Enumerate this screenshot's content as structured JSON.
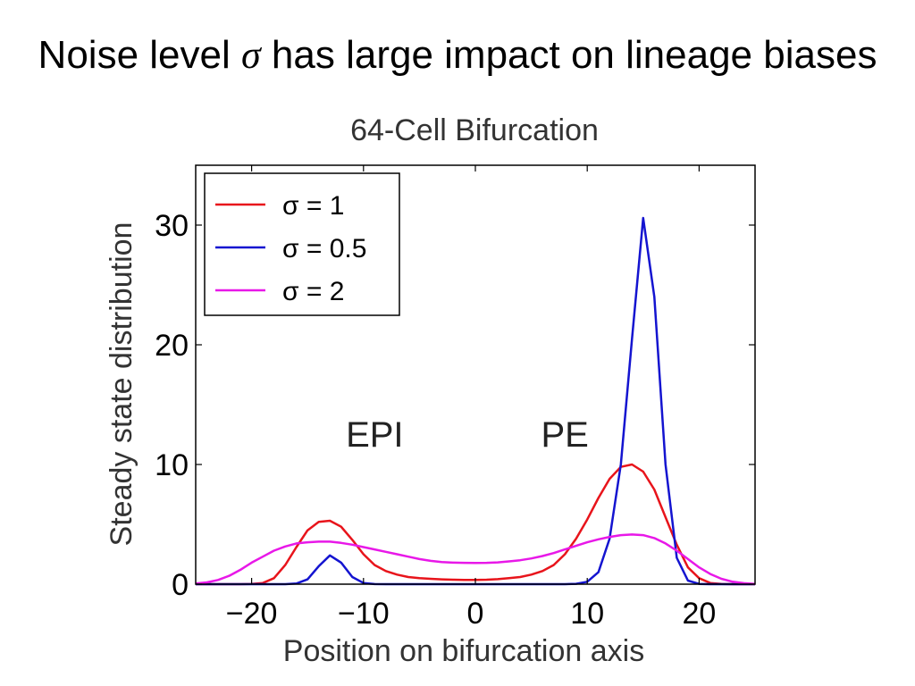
{
  "slide": {
    "title_before": "Noise level ",
    "title_symbol": "σ",
    "title_after": " has large impact on lineage biases"
  },
  "chart_data": {
    "type": "line",
    "title": "64-Cell Bifurcation",
    "xlabel": "Position on bifurcation axis",
    "ylabel": "Steady state distribution",
    "xlim": [
      -25,
      25
    ],
    "ylim": [
      0,
      35
    ],
    "xticks": [
      -20,
      -10,
      0,
      10,
      20
    ],
    "xtick_labels": [
      "−20",
      "−10",
      "0",
      "10",
      "20"
    ],
    "yticks": [
      0,
      10,
      20,
      30
    ],
    "ytick_labels": [
      "0",
      "10",
      "20",
      "30"
    ],
    "grid": false,
    "legend_position": "top-left",
    "annotations": [
      {
        "text": "EPI",
        "x": -9,
        "y": 11.5
      },
      {
        "text": "PE",
        "x": 8,
        "y": 11.5
      }
    ],
    "x": [
      -25,
      -24,
      -23,
      -22,
      -21,
      -20,
      -19,
      -18,
      -17,
      -16,
      -15,
      -14,
      -13,
      -12,
      -11,
      -10,
      -9,
      -8,
      -7,
      -6,
      -5,
      -4,
      -3,
      -2,
      -1,
      0,
      1,
      2,
      3,
      4,
      5,
      6,
      7,
      8,
      9,
      10,
      11,
      12,
      13,
      14,
      15,
      16,
      17,
      18,
      19,
      20,
      21,
      22,
      23,
      24,
      25
    ],
    "series": [
      {
        "name": "σ = 1",
        "color": "#e8141b",
        "values": [
          0,
          0,
          0,
          0,
          0,
          0.02,
          0.1,
          0.5,
          1.6,
          3.1,
          4.5,
          5.2,
          5.3,
          4.8,
          3.7,
          2.5,
          1.6,
          1.1,
          0.8,
          0.6,
          0.5,
          0.45,
          0.4,
          0.37,
          0.35,
          0.35,
          0.37,
          0.42,
          0.5,
          0.6,
          0.8,
          1.1,
          1.6,
          2.5,
          3.8,
          5.4,
          7.2,
          8.8,
          9.8,
          10.0,
          9.4,
          7.9,
          5.6,
          3.3,
          1.4,
          0.5,
          0.1,
          0.02,
          0,
          0,
          0
        ]
      },
      {
        "name": "σ = 0.5",
        "color": "#1414d0",
        "values": [
          0,
          0,
          0,
          0,
          0,
          0,
          0,
          0,
          0,
          0.05,
          0.4,
          1.5,
          2.4,
          1.8,
          0.6,
          0.1,
          0.01,
          0,
          0,
          0,
          0,
          0,
          0,
          0,
          0,
          0,
          0,
          0,
          0,
          0,
          0,
          0,
          0,
          0,
          0.03,
          0.2,
          1.0,
          3.8,
          10.0,
          20.5,
          30.6,
          24.0,
          10.0,
          2.2,
          0.3,
          0.02,
          0,
          0,
          0,
          0,
          0
        ]
      },
      {
        "name": "σ = 2",
        "color": "#e818e8",
        "values": [
          0.05,
          0.15,
          0.35,
          0.7,
          1.2,
          1.8,
          2.3,
          2.8,
          3.15,
          3.4,
          3.5,
          3.55,
          3.55,
          3.45,
          3.3,
          3.1,
          2.9,
          2.7,
          2.5,
          2.3,
          2.1,
          1.95,
          1.85,
          1.8,
          1.78,
          1.77,
          1.78,
          1.82,
          1.9,
          2.0,
          2.15,
          2.35,
          2.6,
          2.9,
          3.2,
          3.5,
          3.75,
          3.95,
          4.1,
          4.15,
          4.1,
          3.85,
          3.4,
          2.8,
          2.1,
          1.4,
          0.85,
          0.45,
          0.2,
          0.08,
          0.02
        ]
      }
    ]
  }
}
